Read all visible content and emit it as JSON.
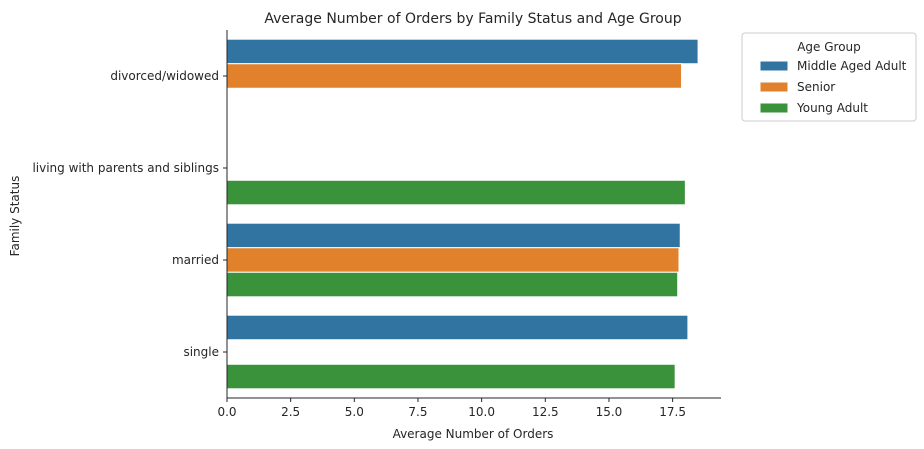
{
  "chart_data": {
    "type": "bar",
    "orientation": "horizontal",
    "title": "Average Number of Orders by Family Status and Age Group",
    "xlabel": "Average Number of Orders",
    "ylabel": "Family Status",
    "xlim": [
      0,
      19.4
    ],
    "x_ticks": [
      "0.0",
      "2.5",
      "5.0",
      "7.5",
      "10.0",
      "12.5",
      "15.0",
      "17.5"
    ],
    "grid": false,
    "legend_position": "outside-top-right",
    "legend_title": "Age Group",
    "categories": [
      "divorced/widowed",
      "living with parents and siblings",
      "married",
      "single"
    ],
    "series": [
      {
        "name": "Middle Aged Adult",
        "color": "#3274a1",
        "values": [
          18.5,
          null,
          17.8,
          18.1
        ]
      },
      {
        "name": "Senior",
        "color": "#e1812c",
        "values": [
          17.85,
          null,
          17.75,
          null
        ]
      },
      {
        "name": "Young Adult",
        "color": "#3a923a",
        "values": [
          null,
          18.0,
          17.7,
          17.6
        ]
      }
    ]
  }
}
